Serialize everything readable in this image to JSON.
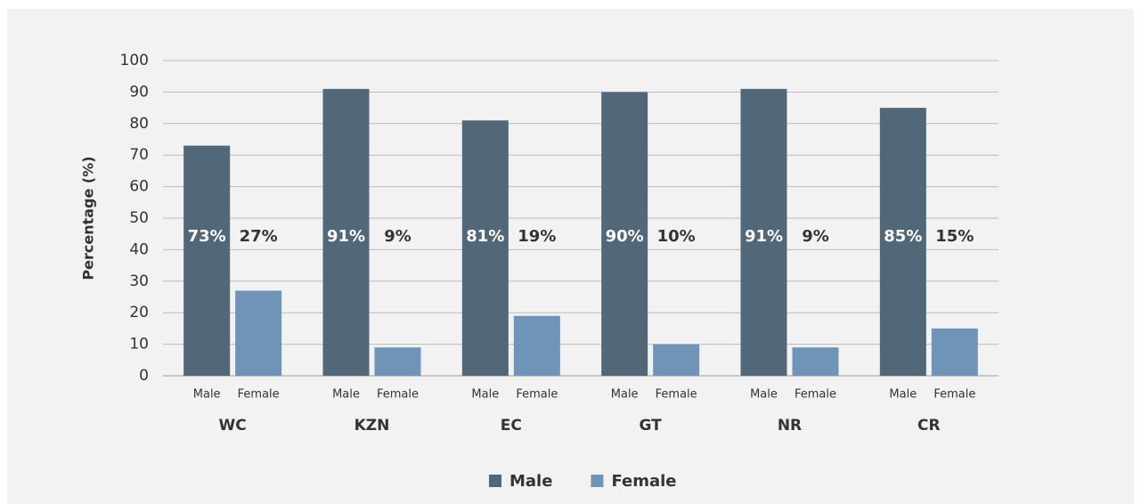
{
  "chart_data": {
    "type": "bar",
    "y_label": "Percentage (%)",
    "categories": [
      "WC",
      "KZN",
      "EC",
      "GT",
      "NR",
      "CR"
    ],
    "series": [
      {
        "name": "Male",
        "color": "#526878",
        "values": [
          73,
          91,
          81,
          90,
          91,
          85
        ],
        "value_labels": [
          "73%",
          "91%",
          "81%",
          "90%",
          "91%",
          "85%"
        ]
      },
      {
        "name": "Female",
        "color": "#7094b8",
        "values": [
          27,
          9,
          19,
          10,
          9,
          15
        ],
        "value_labels": [
          "27%",
          "9%",
          "19%",
          "10%",
          "9%",
          "15%"
        ]
      }
    ],
    "ylim": [
      0,
      100
    ],
    "yticks": [
      0,
      10,
      20,
      30,
      40,
      50,
      60,
      70,
      80,
      90,
      100
    ],
    "grid": true,
    "legend": "bottom"
  }
}
